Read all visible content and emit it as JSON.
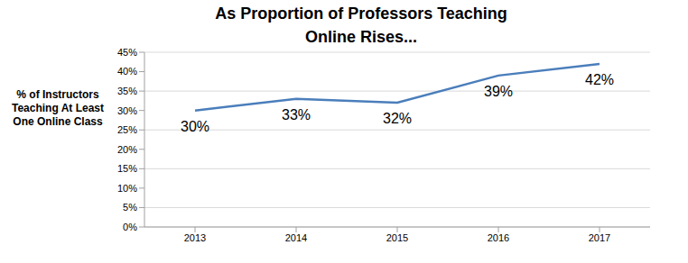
{
  "chart_data": {
    "type": "line",
    "title": "As Proportion of Professors Teaching Online Rises...",
    "y_label": "% of Instructors Teaching At Least One Online Class",
    "categories": [
      "2013",
      "2014",
      "2015",
      "2016",
      "2017"
    ],
    "values": [
      30,
      33,
      32,
      39,
      42
    ],
    "value_labels": [
      "30%",
      "33%",
      "32%",
      "39%",
      "42%"
    ],
    "color": "#4a7ebb",
    "ylim": [
      0,
      45
    ],
    "yticks": [
      {
        "value": 0,
        "label": "0%"
      },
      {
        "value": 5,
        "label": "5%"
      },
      {
        "value": 10,
        "label": "10%"
      },
      {
        "value": 15,
        "label": "15%"
      },
      {
        "value": 20,
        "label": "20%"
      },
      {
        "value": 25,
        "label": "25%"
      },
      {
        "value": 30,
        "label": "30%"
      },
      {
        "value": 35,
        "label": "35%"
      },
      {
        "value": 40,
        "label": "40%"
      },
      {
        "value": 45,
        "label": "45%"
      }
    ],
    "grid": true,
    "data_labels": true
  }
}
